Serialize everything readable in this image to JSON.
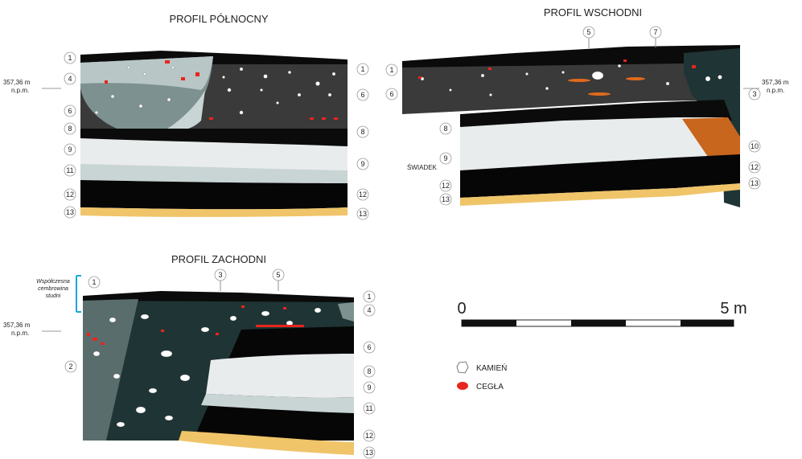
{
  "profiles": {
    "north": {
      "title": "PROFIL PÓŁNOCNY",
      "elevation": "357,36 m",
      "elevation_unit": "n.p.m.",
      "left_layers": [
        "1",
        "4",
        "6",
        "8",
        "9",
        "11",
        "12",
        "13"
      ],
      "right_layers": [
        "1",
        "6",
        "8",
        "9",
        "12",
        "13"
      ]
    },
    "east": {
      "title": "PROFIL WSCHODNI",
      "elevation": "357,36 m",
      "elevation_unit": "n.p.m.",
      "top_layers": [
        "5",
        "7"
      ],
      "left_layers": [
        "1",
        "6",
        "8",
        "9",
        "12",
        "13"
      ],
      "right_layers": [
        "3",
        "10",
        "12",
        "13"
      ],
      "witness_label": "ŚWIADEK"
    },
    "west": {
      "title": "PROFIL ZACHODNI",
      "elevation": "357,36 m",
      "elevation_unit": "n.p.m.",
      "top_layers": [
        "1",
        "3",
        "5"
      ],
      "left_layers": [
        "2"
      ],
      "right_layers": [
        "1",
        "4",
        "6",
        "8",
        "9",
        "11",
        "12",
        "13"
      ],
      "well_note": [
        "Współczesna",
        "cembrowina",
        "studni"
      ]
    }
  },
  "scale": {
    "start": "0",
    "end": "5 m"
  },
  "legend": [
    {
      "label": "KAMIEŃ",
      "symbol": "stone-icon",
      "color": "#ffffff"
    },
    {
      "label": "CEGŁA",
      "symbol": "brick-icon",
      "color": "#e8251d"
    }
  ],
  "colors": {
    "topsoil": "#0b0b0b",
    "dark_fill": "#3a3a3a",
    "grey_teal": "#7d9191",
    "light_grey_teal": "#b8c6c6",
    "gravel": "#e9ecec",
    "light_layer": "#c9d4d4",
    "black_layer": "#060606",
    "sand": "#f0c469",
    "teal_dark": "#1f3434",
    "orange": "#c8661d",
    "brick": "#e8251d"
  }
}
